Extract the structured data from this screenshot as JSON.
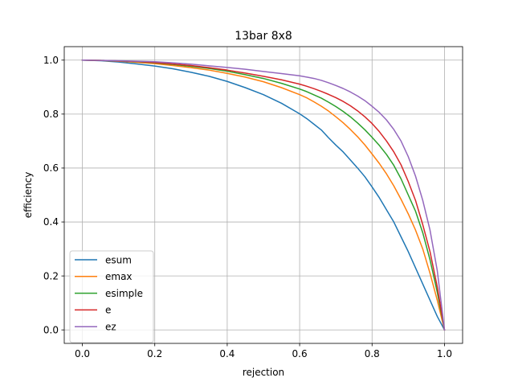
{
  "chart_data": {
    "type": "line",
    "title": "13bar 8x8",
    "xlabel": "rejection",
    "ylabel": "efficiency",
    "xlim": [
      -0.05,
      1.05
    ],
    "ylim": [
      -0.05,
      1.05
    ],
    "xticks": [
      0.0,
      0.2,
      0.4,
      0.6,
      0.8,
      1.0
    ],
    "xtick_labels": [
      "0.0",
      "0.2",
      "0.4",
      "0.6",
      "0.8",
      "1.0"
    ],
    "yticks": [
      0.0,
      0.2,
      0.4,
      0.6,
      0.8,
      1.0
    ],
    "ytick_labels": [
      "0.0",
      "0.2",
      "0.4",
      "0.6",
      "0.8",
      "1.0"
    ],
    "grid": true,
    "legend_position": "lower-left",
    "series": [
      {
        "name": "esum",
        "color": "#1f77b4",
        "x": [
          0.0,
          0.05,
          0.1,
          0.15,
          0.2,
          0.25,
          0.3,
          0.35,
          0.4,
          0.45,
          0.5,
          0.55,
          0.6,
          0.62,
          0.64,
          0.66,
          0.68,
          0.7,
          0.72,
          0.74,
          0.76,
          0.78,
          0.8,
          0.82,
          0.84,
          0.86,
          0.88,
          0.9,
          0.92,
          0.94,
          0.96,
          0.98,
          1.0
        ],
        "y": [
          1.0,
          0.998,
          0.993,
          0.986,
          0.978,
          0.968,
          0.955,
          0.94,
          0.921,
          0.898,
          0.872,
          0.84,
          0.801,
          0.783,
          0.762,
          0.741,
          0.712,
          0.685,
          0.66,
          0.63,
          0.6,
          0.568,
          0.53,
          0.49,
          0.445,
          0.4,
          0.345,
          0.29,
          0.23,
          0.17,
          0.11,
          0.05,
          0.0
        ]
      },
      {
        "name": "emax",
        "color": "#ff7f0e",
        "x": [
          0.0,
          0.05,
          0.1,
          0.15,
          0.2,
          0.25,
          0.3,
          0.35,
          0.4,
          0.45,
          0.5,
          0.55,
          0.6,
          0.62,
          0.64,
          0.66,
          0.68,
          0.7,
          0.72,
          0.74,
          0.76,
          0.78,
          0.8,
          0.82,
          0.84,
          0.86,
          0.88,
          0.9,
          0.92,
          0.94,
          0.96,
          0.98,
          1.0
        ],
        "y": [
          1.0,
          0.999,
          0.996,
          0.992,
          0.987,
          0.98,
          0.972,
          0.963,
          0.951,
          0.937,
          0.92,
          0.898,
          0.872,
          0.86,
          0.845,
          0.829,
          0.811,
          0.79,
          0.768,
          0.743,
          0.716,
          0.686,
          0.652,
          0.617,
          0.578,
          0.534,
          0.484,
          0.43,
          0.37,
          0.3,
          0.21,
          0.11,
          0.0
        ]
      },
      {
        "name": "esimple",
        "color": "#2ca02c",
        "x": [
          0.0,
          0.05,
          0.1,
          0.15,
          0.2,
          0.25,
          0.3,
          0.35,
          0.4,
          0.45,
          0.5,
          0.55,
          0.6,
          0.62,
          0.64,
          0.66,
          0.68,
          0.7,
          0.72,
          0.74,
          0.76,
          0.78,
          0.8,
          0.82,
          0.84,
          0.86,
          0.88,
          0.9,
          0.92,
          0.94,
          0.96,
          0.98,
          1.0
        ],
        "y": [
          1.0,
          0.999,
          0.997,
          0.994,
          0.99,
          0.984,
          0.977,
          0.969,
          0.959,
          0.946,
          0.932,
          0.914,
          0.893,
          0.883,
          0.871,
          0.859,
          0.844,
          0.828,
          0.81,
          0.79,
          0.767,
          0.742,
          0.714,
          0.684,
          0.65,
          0.61,
          0.56,
          0.5,
          0.44,
          0.36,
          0.26,
          0.14,
          0.0
        ]
      },
      {
        "name": "e",
        "color": "#d62728",
        "x": [
          0.0,
          0.05,
          0.1,
          0.15,
          0.2,
          0.25,
          0.3,
          0.35,
          0.4,
          0.45,
          0.5,
          0.55,
          0.6,
          0.62,
          0.64,
          0.66,
          0.68,
          0.7,
          0.72,
          0.74,
          0.76,
          0.78,
          0.8,
          0.82,
          0.84,
          0.86,
          0.88,
          0.9,
          0.92,
          0.94,
          0.96,
          0.98,
          1.0
        ],
        "y": [
          1.0,
          0.999,
          0.997,
          0.995,
          0.991,
          0.986,
          0.98,
          0.972,
          0.963,
          0.952,
          0.94,
          0.927,
          0.911,
          0.903,
          0.894,
          0.884,
          0.873,
          0.861,
          0.847,
          0.831,
          0.812,
          0.79,
          0.765,
          0.735,
          0.7,
          0.66,
          0.612,
          0.55,
          0.48,
          0.39,
          0.29,
          0.16,
          0.0
        ]
      },
      {
        "name": "ez",
        "color": "#9467bd",
        "x": [
          0.0,
          0.05,
          0.1,
          0.15,
          0.2,
          0.25,
          0.3,
          0.35,
          0.4,
          0.45,
          0.5,
          0.55,
          0.6,
          0.62,
          0.64,
          0.66,
          0.68,
          0.7,
          0.72,
          0.74,
          0.76,
          0.78,
          0.8,
          0.82,
          0.84,
          0.86,
          0.88,
          0.9,
          0.92,
          0.94,
          0.96,
          0.98,
          1.0
        ],
        "y": [
          1.0,
          0.999,
          0.998,
          0.996,
          0.994,
          0.99,
          0.985,
          0.979,
          0.973,
          0.966,
          0.958,
          0.95,
          0.942,
          0.937,
          0.932,
          0.925,
          0.916,
          0.906,
          0.895,
          0.882,
          0.867,
          0.85,
          0.829,
          0.806,
          0.778,
          0.743,
          0.7,
          0.642,
          0.57,
          0.48,
          0.37,
          0.22,
          0.0
        ]
      }
    ]
  }
}
